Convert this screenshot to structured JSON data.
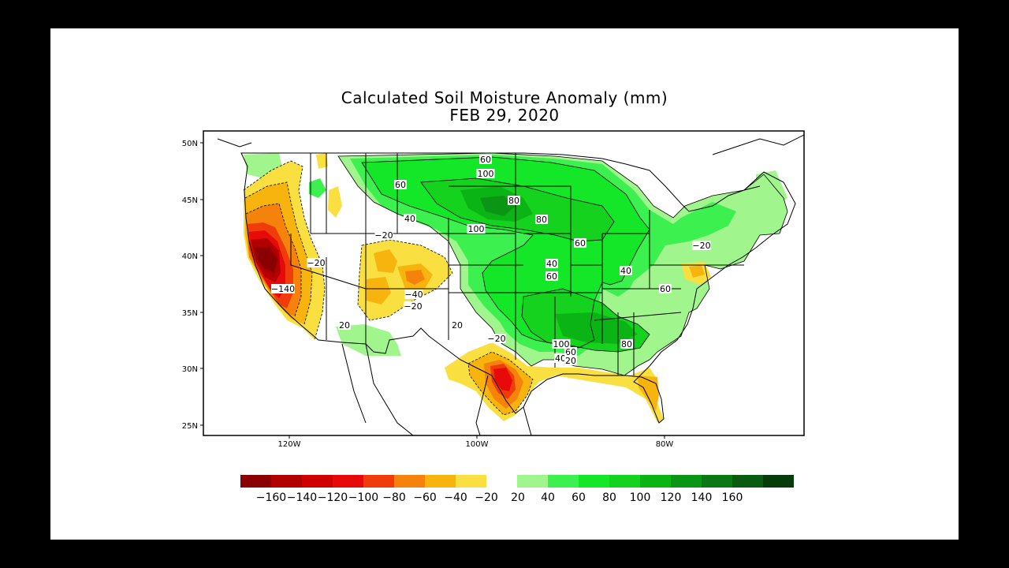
{
  "title": "Calculated Soil Moisture Anomaly (mm)",
  "subtitle": "FEB 29, 2020",
  "colors": {
    "frame_bg": "#ffffff",
    "outer_bg": "#000000"
  },
  "map": {
    "lat_ticks": [
      "50N",
      "45N",
      "40N",
      "35N",
      "30N",
      "25N"
    ],
    "lon_ticks": [
      "120W",
      "100W",
      "80W"
    ],
    "contour_labels": [
      {
        "text": "60"
      },
      {
        "text": "100"
      },
      {
        "text": "60"
      },
      {
        "text": "80"
      },
      {
        "text": "40"
      },
      {
        "text": "100"
      },
      {
        "text": "80"
      },
      {
        "text": "60"
      },
      {
        "text": "40"
      },
      {
        "text": "60"
      },
      {
        "text": "40"
      },
      {
        "text": "60"
      },
      {
        "text": "100"
      },
      {
        "text": "80"
      },
      {
        "text": "60"
      },
      {
        "text": "40"
      },
      {
        "text": "20"
      },
      {
        "text": "-20"
      },
      {
        "text": "-20"
      },
      {
        "text": "-140"
      },
      {
        "text": "-40"
      },
      {
        "text": "-20"
      },
      {
        "text": "20"
      },
      {
        "text": "20"
      },
      {
        "text": "-20"
      },
      {
        "text": "-20"
      }
    ]
  },
  "legend": {
    "negative": [
      {
        "label": "-160",
        "color": "#8b0000"
      },
      {
        "label": "-140",
        "color": "#b20000"
      },
      {
        "label": "-120",
        "color": "#d10000"
      },
      {
        "label": "-100",
        "color": "#e60a0a"
      },
      {
        "label": "-80",
        "color": "#f03c0a"
      },
      {
        "label": "-60",
        "color": "#f5820a"
      },
      {
        "label": "-40",
        "color": "#f7b40f"
      },
      {
        "label": "-20",
        "color": "#f9e040"
      }
    ],
    "neutral": {
      "label": "20",
      "color": "#ffffff"
    },
    "positive": [
      {
        "label": "40",
        "color": "#a0f58c"
      },
      {
        "label": "60",
        "color": "#3cf050"
      },
      {
        "label": "80",
        "color": "#14e628"
      },
      {
        "label": "100",
        "color": "#14d21e"
      },
      {
        "label": "120",
        "color": "#0ab414"
      },
      {
        "label": "140",
        "color": "#0a9614"
      },
      {
        "label": "160",
        "color": "#0a7814"
      },
      {
        "label": "",
        "color": "#0a5a0f"
      },
      {
        "label": "",
        "color": "#053c0a"
      }
    ]
  }
}
